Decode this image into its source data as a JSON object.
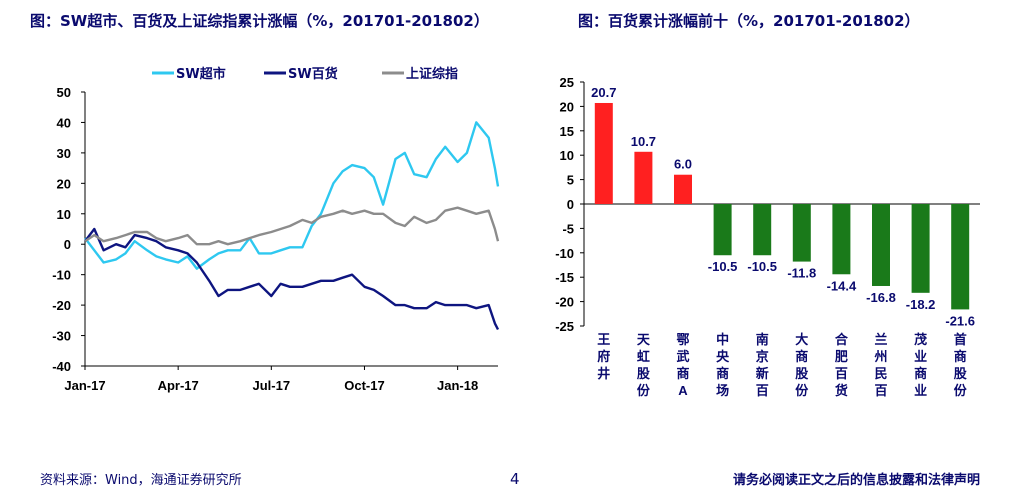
{
  "titles": {
    "left": "图：SW超市、百货及上证综指累计涨幅（%，201701-201802）",
    "right": "图：百货累计涨幅前十（%，201701-201802）"
  },
  "footer": {
    "source": "资料来源：Wind，海通证券研究所",
    "page": "4",
    "disclaimer": "请务必阅读正文之后的信息披露和法律声明"
  },
  "colors": {
    "supermarket": "#2ec8f0",
    "department": "#0e1580",
    "index": "#8c8c8c",
    "positive": "#ff2020",
    "negative": "#1a7a1a"
  },
  "chart_data": [
    {
      "type": "line",
      "xlabel": "",
      "ylabel": "",
      "ylim": [
        -40,
        50
      ],
      "yticks": [
        -40,
        -30,
        -20,
        -10,
        0,
        10,
        20,
        30,
        40,
        50
      ],
      "xticks": [
        "Jan-17",
        "Apr-17",
        "Jul-17",
        "Oct-17",
        "Jan-18"
      ],
      "xrange": [
        0,
        13.3
      ],
      "grid": false,
      "legend_position": "top",
      "x": [
        0,
        0.3,
        0.6,
        1,
        1.3,
        1.6,
        2,
        2.3,
        2.6,
        3,
        3.3,
        3.6,
        4,
        4.3,
        4.6,
        5,
        5.3,
        5.6,
        6,
        6.3,
        6.6,
        7,
        7.3,
        7.6,
        8,
        8.3,
        8.6,
        9,
        9.3,
        9.6,
        10,
        10.3,
        10.6,
        11,
        11.3,
        11.6,
        12,
        12.3,
        12.6,
        13,
        13.2,
        13.3
      ],
      "series": [
        {
          "name": "SW超市",
          "key": "supermarket",
          "values": [
            2,
            -2,
            -6,
            -5,
            -3,
            1,
            -2,
            -4,
            -5,
            -6,
            -4,
            -8,
            -5,
            -3,
            -2,
            -2,
            2,
            -3,
            -3,
            -2,
            -1,
            -1,
            6,
            10,
            20,
            24,
            26,
            25,
            22,
            13,
            28,
            30,
            23,
            22,
            28,
            32,
            27,
            30,
            40,
            35,
            25,
            19
          ]
        },
        {
          "name": "SW百货",
          "key": "department",
          "values": [
            1,
            5,
            -2,
            0,
            -1,
            3,
            2,
            1,
            -1,
            -2,
            -3,
            -6,
            -12,
            -17,
            -15,
            -15,
            -14,
            -13,
            -17,
            -13,
            -14,
            -14,
            -13,
            -12,
            -12,
            -11,
            -10,
            -14,
            -15,
            -17,
            -20,
            -20,
            -21,
            -21,
            -19,
            -20,
            -20,
            -20,
            -21,
            -20,
            -26,
            -28
          ]
        },
        {
          "name": "上证综指",
          "key": "index",
          "values": [
            1,
            3,
            1,
            2,
            3,
            4,
            4,
            2,
            1,
            2,
            3,
            0,
            0,
            1,
            0,
            1,
            2,
            3,
            4,
            5,
            6,
            8,
            7,
            9,
            10,
            11,
            10,
            11,
            10,
            10,
            7,
            6,
            9,
            7,
            8,
            11,
            12,
            11,
            10,
            11,
            5,
            1
          ]
        }
      ]
    },
    {
      "type": "bar",
      "ylim": [
        -25,
        25
      ],
      "yticks": [
        -25,
        -20,
        -15,
        -10,
        -5,
        0,
        5,
        10,
        15,
        20,
        25
      ],
      "categories": [
        "王府井",
        "天虹股份",
        "鄂武商A",
        "中央商场",
        "南京新百",
        "大商股份",
        "合肥百货",
        "兰州民百",
        "茂业商业",
        "首商股份"
      ],
      "values": [
        20.7,
        10.7,
        6.0,
        -10.5,
        -10.5,
        -11.8,
        -14.4,
        -16.8,
        -18.2,
        -21.6
      ],
      "value_labels": [
        "20.7",
        "10.7",
        "6.0",
        "-10.5",
        "-10.5",
        "-11.8",
        "-14.4",
        "-16.8",
        "-18.2",
        "-21.6"
      ]
    }
  ]
}
